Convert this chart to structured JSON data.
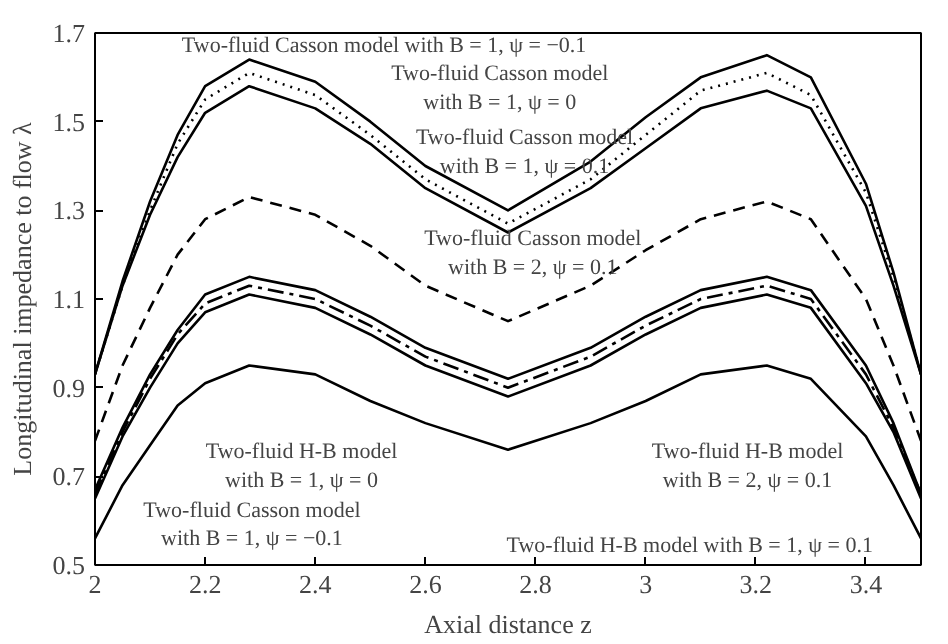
{
  "chart_data": {
    "type": "line",
    "xlabel": "Axial distance z",
    "ylabel": "Longitudinal impedance to flow λ",
    "x": [
      2,
      2.05,
      2.1,
      2.15,
      2.2,
      2.28,
      2.4,
      2.5,
      2.6,
      2.75,
      2.9,
      3.0,
      3.1,
      3.22,
      3.3,
      3.4,
      3.45,
      3.5
    ],
    "series": [
      {
        "color": "#000000",
        "line_style": "solid",
        "values": [
          0.93,
          1.14,
          1.32,
          1.47,
          1.58,
          1.64,
          1.59,
          1.5,
          1.4,
          1.3,
          1.41,
          1.51,
          1.6,
          1.65,
          1.6,
          1.36,
          1.16,
          0.93
        ]
      },
      {
        "color": "#000000",
        "line_style": "dotted",
        "values": [
          0.93,
          1.13,
          1.3,
          1.45,
          1.55,
          1.61,
          1.56,
          1.47,
          1.37,
          1.27,
          1.37,
          1.47,
          1.57,
          1.61,
          1.56,
          1.34,
          1.15,
          0.93
        ]
      },
      {
        "color": "#000000",
        "line_style": "solid",
        "values": [
          0.93,
          1.13,
          1.29,
          1.42,
          1.52,
          1.58,
          1.53,
          1.45,
          1.35,
          1.25,
          1.35,
          1.44,
          1.53,
          1.57,
          1.53,
          1.31,
          1.13,
          0.93
        ]
      },
      {
        "color": "#000000",
        "line_style": "dashed",
        "values": [
          0.78,
          0.95,
          1.08,
          1.2,
          1.28,
          1.33,
          1.29,
          1.22,
          1.13,
          1.05,
          1.13,
          1.21,
          1.28,
          1.32,
          1.28,
          1.1,
          0.95,
          0.78
        ]
      },
      {
        "color": "#000000",
        "line_style": "solid",
        "values": [
          0.67,
          0.81,
          0.93,
          1.03,
          1.11,
          1.15,
          1.12,
          1.06,
          0.99,
          0.92,
          0.99,
          1.06,
          1.12,
          1.15,
          1.12,
          0.95,
          0.82,
          0.66
        ]
      },
      {
        "color": "#000000",
        "line_style": "dashdot",
        "values": [
          0.66,
          0.8,
          0.92,
          1.02,
          1.09,
          1.13,
          1.1,
          1.04,
          0.97,
          0.9,
          0.97,
          1.04,
          1.1,
          1.13,
          1.1,
          0.93,
          0.81,
          0.66
        ]
      },
      {
        "color": "#000000",
        "line_style": "solid",
        "values": [
          0.65,
          0.79,
          0.9,
          1.0,
          1.07,
          1.11,
          1.08,
          1.02,
          0.95,
          0.88,
          0.95,
          1.02,
          1.08,
          1.11,
          1.08,
          0.91,
          0.8,
          0.65
        ]
      },
      {
        "color": "#000000",
        "line_style": "solid",
        "values": [
          0.56,
          0.68,
          0.77,
          0.86,
          0.91,
          0.95,
          0.93,
          0.87,
          0.82,
          0.76,
          0.82,
          0.87,
          0.93,
          0.95,
          0.92,
          0.79,
          0.68,
          0.56
        ]
      }
    ],
    "xlim": [
      2,
      3.5
    ],
    "ylim": [
      0.5,
      1.7
    ],
    "xticks": [
      2,
      2.2,
      2.4,
      2.6,
      2.8,
      3,
      3.2,
      3.4
    ],
    "yticks": [
      0.5,
      0.7,
      0.9,
      1.1,
      1.3,
      1.5,
      1.7
    ],
    "grid": false,
    "marker": "none",
    "annotations": [
      "Two-fluid Casson model with B = 1, ψ = −0.1",
      "Two-fluid Casson model\nwith B = 1, ψ = 0",
      "Two-fluid Casson model\nwith B = 1, ψ = 0.1",
      "Two-fluid Casson model\nwith B = 2, ψ = 0.1",
      "Two-fluid H-B model\nwith B = 1, ψ = 0",
      "Two-fluid Casson model\nwith B = 1, ψ = −0.1",
      "Two-fluid H-B model\nwith B = 2, ψ = 0.1",
      "Two-fluid H-B model with B = 1, ψ = 0.1"
    ]
  }
}
